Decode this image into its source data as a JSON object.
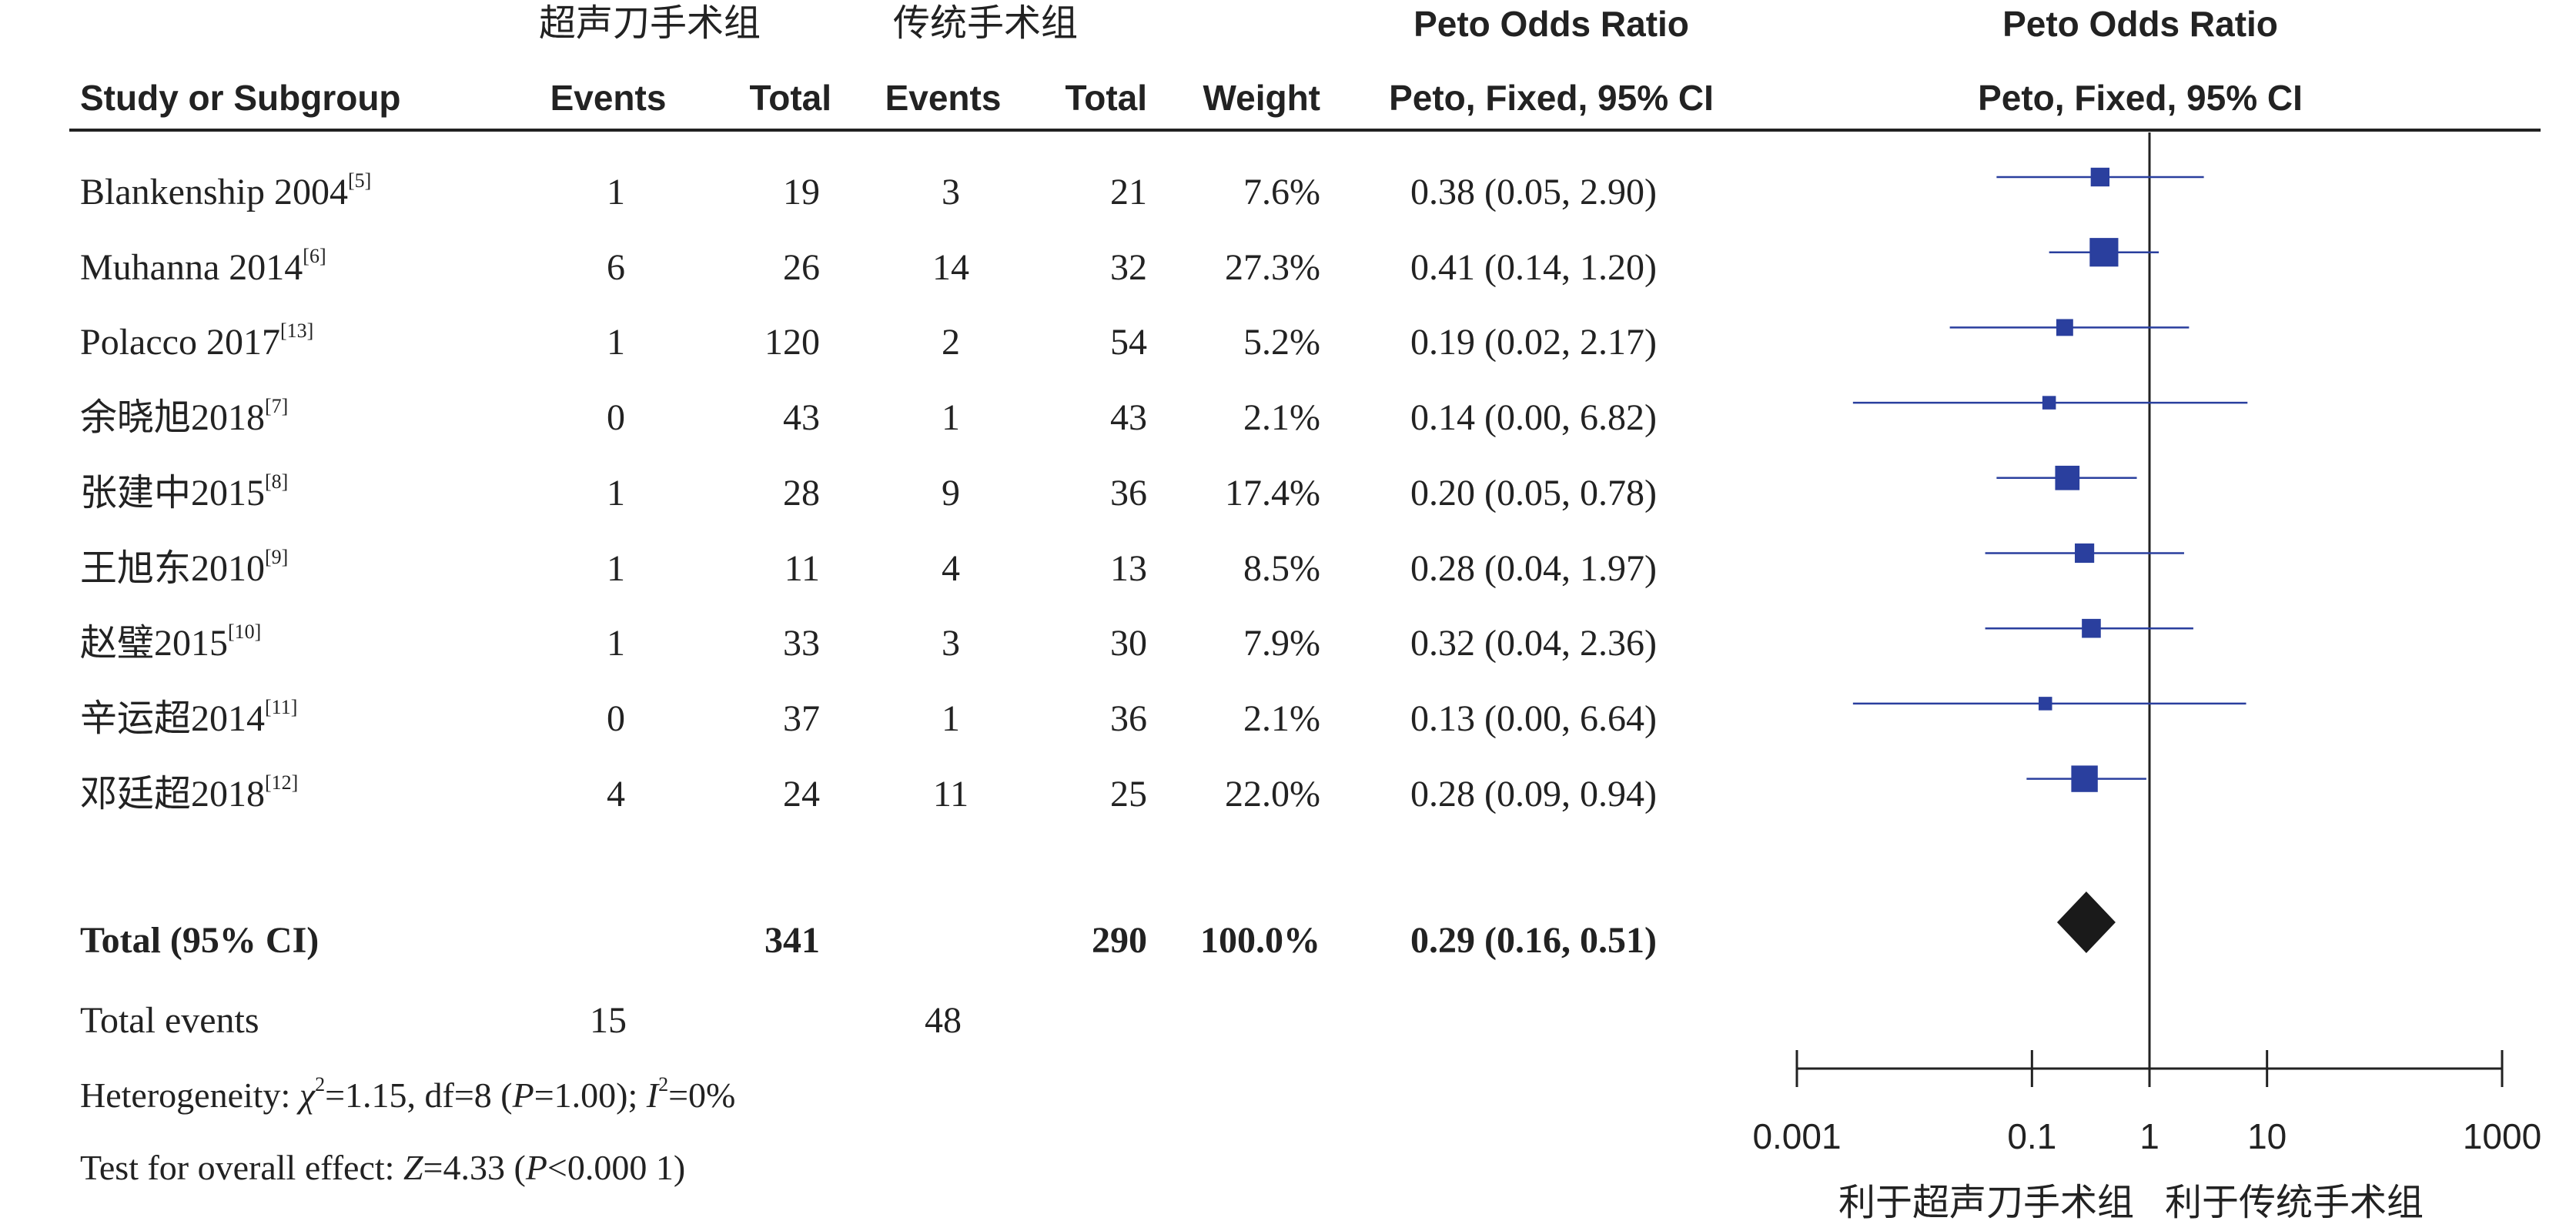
{
  "headers": {
    "group1": "超声刀手术组",
    "group2": "传统手术组",
    "effect_title": "Peto Odds Ratio",
    "effect_method": "Peto, Fixed, 95% CI",
    "plot_title": "Peto Odds Ratio",
    "plot_method": "Peto, Fixed, 95% CI",
    "study": "Study or Subgroup",
    "events1": "Events",
    "total1": "Total",
    "events2": "Events",
    "total2": "Total",
    "weight": "Weight"
  },
  "studies": [
    {
      "name": "Blankenship 2004",
      "ref": "[5]",
      "events1": "1",
      "total1": "19",
      "events2": "3",
      "total2": "21",
      "weight": "7.6%",
      "ci_text": "0.38 (0.05, 2.90)",
      "or": 0.38,
      "lo": 0.05,
      "hi": 2.9,
      "w": 7.6
    },
    {
      "name": "Muhanna 2014",
      "ref": "[6]",
      "events1": "6",
      "total1": "26",
      "events2": "14",
      "total2": "32",
      "weight": "27.3%",
      "ci_text": "0.41 (0.14, 1.20)",
      "or": 0.41,
      "lo": 0.14,
      "hi": 1.2,
      "w": 27.3
    },
    {
      "name": "Polacco 2017",
      "ref": "[13]",
      "events1": "1",
      "total1": "120",
      "events2": "2",
      "total2": "54",
      "weight": "5.2%",
      "ci_text": "0.19 (0.02, 2.17)",
      "or": 0.19,
      "lo": 0.02,
      "hi": 2.17,
      "w": 5.2
    },
    {
      "name": "余晓旭2018",
      "ref": "[7]",
      "events1": "0",
      "total1": "43",
      "events2": "1",
      "total2": "43",
      "weight": "2.1%",
      "ci_text": "0.14 (0.00, 6.82)",
      "or": 0.14,
      "lo": 0.003,
      "hi": 6.82,
      "w": 2.1
    },
    {
      "name": "张建中2015",
      "ref": "[8]",
      "events1": "1",
      "total1": "28",
      "events2": "9",
      "total2": "36",
      "weight": "17.4%",
      "ci_text": "0.20 (0.05, 0.78)",
      "or": 0.2,
      "lo": 0.05,
      "hi": 0.78,
      "w": 17.4
    },
    {
      "name": "王旭东2010",
      "ref": "[9]",
      "events1": "1",
      "total1": "11",
      "events2": "4",
      "total2": "13",
      "weight": "8.5%",
      "ci_text": "0.28 (0.04, 1.97)",
      "or": 0.28,
      "lo": 0.04,
      "hi": 1.97,
      "w": 8.5
    },
    {
      "name": "赵璧2015",
      "ref": "[10]",
      "events1": "1",
      "total1": "33",
      "events2": "3",
      "total2": "30",
      "weight": "7.9%",
      "ci_text": "0.32 (0.04, 2.36)",
      "or": 0.32,
      "lo": 0.04,
      "hi": 2.36,
      "w": 7.9
    },
    {
      "name": "辛运超2014",
      "ref": "[11]",
      "events1": "0",
      "total1": "37",
      "events2": "1",
      "total2": "36",
      "weight": "2.1%",
      "ci_text": "0.13 (0.00, 6.64)",
      "or": 0.13,
      "lo": 0.003,
      "hi": 6.64,
      "w": 2.1
    },
    {
      "name": "邓廷超2018",
      "ref": "[12]",
      "events1": "4",
      "total1": "24",
      "events2": "11",
      "total2": "25",
      "weight": "22.0%",
      "ci_text": "0.28 (0.09, 0.94)",
      "or": 0.28,
      "lo": 0.09,
      "hi": 0.94,
      "w": 22.0
    }
  ],
  "total": {
    "label": "Total (95% CI)",
    "total1": "341",
    "total2": "290",
    "weight": "100.0%",
    "ci_text": "0.29 (0.16, 0.51)",
    "or": 0.29,
    "lo": 0.16,
    "hi": 0.51
  },
  "total_events": {
    "label": "Total events",
    "events1": "15",
    "events2": "48"
  },
  "footnotes": {
    "heterogeneity_prefix": "Heterogeneity: ",
    "chi": "χ",
    "chi_sup": "2",
    "heterogeneity_mid": "=1.15, df=8 (",
    "p_label": "P",
    "heterogeneity_p": "=1.00); ",
    "i_label": "I",
    "i_sup": "2",
    "heterogeneity_end": "=0%",
    "overall_prefix": "Test for overall effect: ",
    "z_label": "Z",
    "overall_mid": "=4.33 (",
    "overall_p_label": "P",
    "overall_end": "<0.000 1)"
  },
  "chart_data": {
    "type": "forest",
    "scale": "log",
    "xlim": [
      0.001,
      1000
    ],
    "ticks": [
      0.001,
      0.1,
      1,
      10,
      1000
    ],
    "tick_labels": [
      "0.001",
      "0.1",
      "1",
      "10",
      "1000"
    ],
    "reference_line": 1,
    "favours_left": "利于超声刀手术组",
    "favours_right": "利于传统手术组",
    "colors": {
      "study_marker": "#2a3f9e",
      "summary_marker": "#1a1a1a",
      "lines": "#222222"
    }
  }
}
